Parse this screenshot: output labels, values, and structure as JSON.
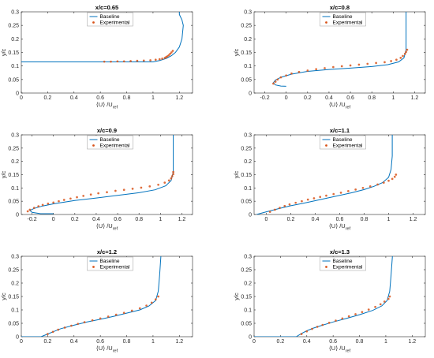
{
  "chart_data": [
    {
      "type": "line",
      "title": "x/c=0.65",
      "xlabel_main": "⟨U⟩ /U",
      "xlabel_sub": "ref",
      "ylabel": "y/c",
      "xlim": [
        0,
        1.3
      ],
      "ylim": [
        0,
        0.3
      ],
      "xticks": [
        0,
        0.2,
        0.4,
        0.6,
        0.8,
        1,
        1.2
      ],
      "yticks": [
        0,
        0.05,
        0.1,
        0.15,
        0.2,
        0.25,
        0.3
      ],
      "grid": false,
      "legend": "top-center",
      "series": [
        {
          "name": "Baseline",
          "style": "line",
          "color": "#0072BD",
          "x": [
            0.0,
            1.0,
            1.05,
            1.1,
            1.14,
            1.17,
            1.2,
            1.22,
            1.23,
            1.22,
            1.2,
            1.2
          ],
          "y": [
            0.115,
            0.115,
            0.12,
            0.128,
            0.138,
            0.15,
            0.17,
            0.2,
            0.25,
            0.27,
            0.29,
            0.3
          ]
        },
        {
          "name": "Experimental",
          "style": "marker",
          "color": "#D95319",
          "x": [
            0.63,
            0.68,
            0.73,
            0.78,
            0.83,
            0.88,
            0.93,
            0.98,
            1.02,
            1.05,
            1.07,
            1.09,
            1.1,
            1.11,
            1.12,
            1.13,
            1.14,
            1.15
          ],
          "y": [
            0.116,
            0.116,
            0.117,
            0.117,
            0.118,
            0.119,
            0.12,
            0.121,
            0.123,
            0.125,
            0.127,
            0.13,
            0.133,
            0.136,
            0.14,
            0.145,
            0.15,
            0.156
          ]
        }
      ]
    },
    {
      "type": "line",
      "title": "x/c=0.8",
      "xlabel_main": "⟨U⟩ /U",
      "xlabel_sub": "ref",
      "ylabel": "y/c",
      "xlim": [
        -0.3,
        1.3
      ],
      "ylim": [
        0,
        0.3
      ],
      "xticks": [
        -0.2,
        0,
        0.2,
        0.4,
        0.6,
        0.8,
        1,
        1.2
      ],
      "yticks": [
        0,
        0.05,
        0.1,
        0.15,
        0.2,
        0.25,
        0.3
      ],
      "grid": false,
      "legend": "top-center",
      "series": [
        {
          "name": "Baseline",
          "style": "line",
          "color": "#0072BD",
          "x": [
            0.0,
            -0.05,
            -0.1,
            -0.12,
            -0.1,
            -0.05,
            0.05,
            0.2,
            0.4,
            0.6,
            0.8,
            0.95,
            1.05,
            1.1,
            1.12,
            1.12,
            1.12
          ],
          "y": [
            0.025,
            0.026,
            0.03,
            0.038,
            0.048,
            0.058,
            0.07,
            0.08,
            0.087,
            0.092,
            0.098,
            0.105,
            0.115,
            0.13,
            0.16,
            0.22,
            0.3
          ]
        },
        {
          "name": "Experimental",
          "style": "marker",
          "color": "#D95319",
          "x": [
            -0.12,
            -0.1,
            -0.08,
            -0.05,
            0.0,
            0.05,
            0.12,
            0.2,
            0.28,
            0.36,
            0.44,
            0.52,
            0.6,
            0.68,
            0.76,
            0.84,
            0.92,
            0.98,
            1.03,
            1.07,
            1.09,
            1.11,
            1.12,
            1.13
          ],
          "y": [
            0.035,
            0.042,
            0.05,
            0.058,
            0.065,
            0.072,
            0.078,
            0.083,
            0.088,
            0.092,
            0.096,
            0.099,
            0.102,
            0.105,
            0.108,
            0.111,
            0.114,
            0.118,
            0.123,
            0.13,
            0.137,
            0.145,
            0.152,
            0.16
          ]
        }
      ]
    },
    {
      "type": "line",
      "title": "x/c=0.9",
      "xlabel_main": "⟨U⟩ /U",
      "xlabel_sub": "ref",
      "ylabel": "y/c",
      "xlim": [
        -0.3,
        1.3
      ],
      "ylim": [
        0,
        0.3
      ],
      "xticks": [
        -0.2,
        0,
        0.2,
        0.4,
        0.6,
        0.8,
        1,
        1.2
      ],
      "yticks": [
        0,
        0.05,
        0.1,
        0.15,
        0.2,
        0.25,
        0.3
      ],
      "grid": false,
      "legend": "top-center",
      "series": [
        {
          "name": "Baseline",
          "style": "line",
          "color": "#0072BD",
          "x": [
            0.0,
            -0.12,
            -0.2,
            -0.22,
            -0.18,
            -0.1,
            0.0,
            0.2,
            0.4,
            0.6,
            0.8,
            0.95,
            1.05,
            1.1,
            1.12,
            1.12,
            1.12
          ],
          "y": [
            0.003,
            0.003,
            0.008,
            0.015,
            0.023,
            0.032,
            0.04,
            0.053,
            0.062,
            0.072,
            0.082,
            0.093,
            0.108,
            0.128,
            0.16,
            0.22,
            0.3
          ]
        },
        {
          "name": "Experimental",
          "style": "marker",
          "color": "#D95319",
          "x": [
            -0.24,
            -0.22,
            -0.18,
            -0.14,
            -0.1,
            -0.05,
            0.0,
            0.05,
            0.1,
            0.16,
            0.22,
            0.28,
            0.35,
            0.42,
            0.5,
            0.58,
            0.66,
            0.74,
            0.82,
            0.9,
            0.98,
            1.04,
            1.08,
            1.1,
            1.11,
            1.12,
            1.12
          ],
          "y": [
            0.012,
            0.018,
            0.025,
            0.031,
            0.036,
            0.041,
            0.045,
            0.05,
            0.055,
            0.06,
            0.065,
            0.07,
            0.075,
            0.08,
            0.084,
            0.089,
            0.093,
            0.097,
            0.101,
            0.106,
            0.112,
            0.12,
            0.128,
            0.136,
            0.144,
            0.152,
            0.16
          ]
        }
      ]
    },
    {
      "type": "line",
      "title": "x/c=1.1",
      "xlabel_main": "⟨U⟩ /U",
      "xlabel_sub": "ref",
      "ylabel": "y/c",
      "xlim": [
        -0.1,
        1.3
      ],
      "ylim": [
        0,
        0.3
      ],
      "xticks": [
        0,
        0.2,
        0.4,
        0.6,
        0.8,
        1,
        1.2
      ],
      "yticks": [
        0,
        0.05,
        0.1,
        0.15,
        0.2,
        0.25,
        0.3
      ],
      "grid": false,
      "legend": "top-center",
      "series": [
        {
          "name": "Baseline",
          "style": "line",
          "color": "#0072BD",
          "x": [
            -0.08,
            0.0,
            0.1,
            0.2,
            0.3,
            0.4,
            0.5,
            0.6,
            0.7,
            0.8,
            0.88,
            0.95,
            1.0,
            1.02,
            1.03,
            1.03
          ],
          "y": [
            0.0,
            0.01,
            0.022,
            0.033,
            0.042,
            0.052,
            0.062,
            0.072,
            0.082,
            0.094,
            0.106,
            0.12,
            0.14,
            0.17,
            0.22,
            0.3
          ]
        },
        {
          "name": "Experimental",
          "style": "marker",
          "color": "#D95319",
          "x": [
            0.03,
            0.07,
            0.11,
            0.15,
            0.19,
            0.24,
            0.29,
            0.34,
            0.39,
            0.44,
            0.49,
            0.55,
            0.61,
            0.67,
            0.73,
            0.79,
            0.85,
            0.91,
            0.96,
            1.0,
            1.03,
            1.05,
            1.06
          ],
          "y": [
            0.01,
            0.018,
            0.025,
            0.032,
            0.038,
            0.044,
            0.05,
            0.056,
            0.061,
            0.066,
            0.071,
            0.077,
            0.082,
            0.088,
            0.094,
            0.1,
            0.106,
            0.113,
            0.12,
            0.127,
            0.134,
            0.142,
            0.15
          ]
        }
      ]
    },
    {
      "type": "line",
      "title": "x/c=1.2",
      "xlabel_main": "⟨U⟩ /U",
      "xlabel_sub": "ref",
      "ylabel": "y/c",
      "xlim": [
        0,
        1.3
      ],
      "ylim": [
        0,
        0.3
      ],
      "xticks": [
        0,
        0.2,
        0.4,
        0.6,
        0.8,
        1,
        1.2
      ],
      "yticks": [
        0,
        0.05,
        0.1,
        0.15,
        0.2,
        0.25,
        0.3
      ],
      "grid": false,
      "legend": "top-center",
      "series": [
        {
          "name": "Baseline",
          "style": "line",
          "color": "#0072BD",
          "x": [
            0.0,
            0.15,
            0.2,
            0.25,
            0.3,
            0.4,
            0.5,
            0.6,
            0.7,
            0.8,
            0.9,
            0.97,
            1.02,
            1.04,
            1.05,
            1.06
          ],
          "y": [
            0.0,
            0.0,
            0.01,
            0.02,
            0.03,
            0.043,
            0.055,
            0.065,
            0.076,
            0.088,
            0.1,
            0.115,
            0.135,
            0.17,
            0.23,
            0.3
          ]
        },
        {
          "name": "Experimental",
          "style": "marker",
          "color": "#D95319",
          "x": [
            0.2,
            0.24,
            0.28,
            0.33,
            0.38,
            0.43,
            0.48,
            0.54,
            0.6,
            0.66,
            0.72,
            0.78,
            0.84,
            0.9,
            0.95,
            0.99,
            1.02,
            1.04
          ],
          "y": [
            0.01,
            0.018,
            0.026,
            0.034,
            0.041,
            0.048,
            0.054,
            0.061,
            0.068,
            0.075,
            0.082,
            0.089,
            0.097,
            0.106,
            0.116,
            0.127,
            0.139,
            0.15
          ]
        }
      ]
    },
    {
      "type": "line",
      "title": "x/c=1.3",
      "xlabel_main": "⟨U⟩ /U",
      "xlabel_sub": "ref",
      "ylabel": "y/c",
      "xlim": [
        0,
        1.3
      ],
      "ylim": [
        0,
        0.3
      ],
      "xticks": [
        0,
        0.2,
        0.4,
        0.6,
        0.8,
        1,
        1.2
      ],
      "yticks": [
        0,
        0.05,
        0.1,
        0.15,
        0.2,
        0.25,
        0.3
      ],
      "grid": false,
      "legend": "top-center",
      "series": [
        {
          "name": "Baseline",
          "style": "line",
          "color": "#0072BD",
          "x": [
            0.0,
            0.32,
            0.36,
            0.4,
            0.45,
            0.5,
            0.6,
            0.7,
            0.8,
            0.9,
            0.97,
            1.01,
            1.03,
            1.04,
            1.05
          ],
          "y": [
            0.0,
            0.0,
            0.012,
            0.022,
            0.032,
            0.04,
            0.055,
            0.068,
            0.082,
            0.098,
            0.115,
            0.135,
            0.17,
            0.23,
            0.3
          ]
        },
        {
          "name": "Experimental",
          "style": "marker",
          "color": "#D95319",
          "x": [
            0.36,
            0.4,
            0.44,
            0.48,
            0.52,
            0.57,
            0.62,
            0.67,
            0.72,
            0.77,
            0.82,
            0.87,
            0.92,
            0.96,
            0.99,
            1.02,
            1.03
          ],
          "y": [
            0.01,
            0.02,
            0.029,
            0.037,
            0.044,
            0.052,
            0.06,
            0.068,
            0.076,
            0.084,
            0.092,
            0.101,
            0.111,
            0.121,
            0.131,
            0.141,
            0.15
          ]
        }
      ]
    }
  ]
}
